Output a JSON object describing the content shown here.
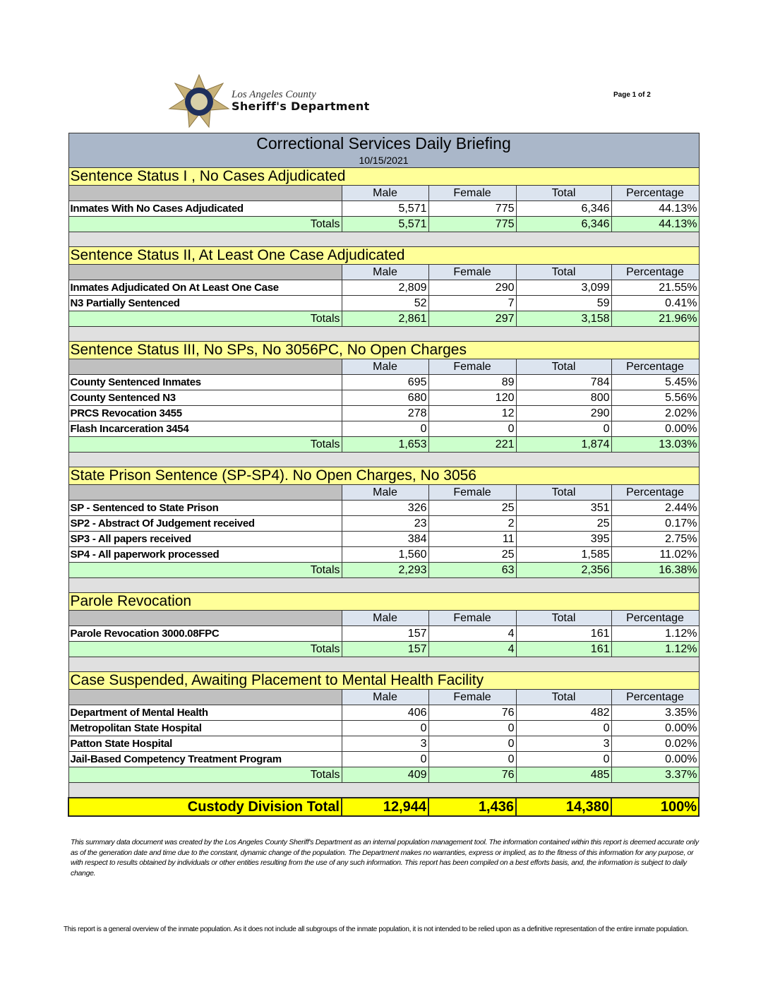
{
  "header": {
    "org_line1": "Los Angeles County",
    "org_line2": "Sheriff's Department",
    "page": "Page 1 of 2"
  },
  "report": {
    "title": "Correctional Services Daily Briefing",
    "date": "10/15/2021"
  },
  "columns": [
    "Male",
    "Female",
    "Total",
    "Percentage"
  ],
  "totals_label": "Totals",
  "sections": [
    {
      "title": "Sentence Status I , No Cases Adjudicated",
      "rows": [
        [
          "Inmates With No Cases Adjudicated",
          "5,571",
          "775",
          "6,346",
          "44.13%"
        ]
      ],
      "totals": [
        "5,571",
        "775",
        "6,346",
        "44.13%"
      ]
    },
    {
      "title": "Sentence Status II, At Least One Case Adjudicated",
      "rows": [
        [
          "Inmates Adjudicated On At Least One Case",
          "2,809",
          "290",
          "3,099",
          "21.55%"
        ],
        [
          "N3 Partially Sentenced",
          "52",
          "7",
          "59",
          "0.41%"
        ]
      ],
      "totals": [
        "2,861",
        "297",
        "3,158",
        "21.96%"
      ]
    },
    {
      "title": "Sentence Status III, No SPs, No 3056PC, No Open Charges",
      "rows": [
        [
          "County Sentenced Inmates",
          "695",
          "89",
          "784",
          "5.45%"
        ],
        [
          "County Sentenced N3",
          "680",
          "120",
          "800",
          "5.56%"
        ],
        [
          "PRCS Revocation 3455",
          "278",
          "12",
          "290",
          "2.02%"
        ],
        [
          "Flash Incarceration 3454",
          "0",
          "0",
          "0",
          "0.00%"
        ]
      ],
      "totals": [
        "1,653",
        "221",
        "1,874",
        "13.03%"
      ]
    },
    {
      "title": "State Prison Sentence (SP-SP4). No Open Charges, No 3056",
      "rows": [
        [
          "SP - Sentenced to State Prison",
          "326",
          "25",
          "351",
          "2.44%"
        ],
        [
          "SP2 - Abstract Of Judgement received",
          "23",
          "2",
          "25",
          "0.17%"
        ],
        [
          "SP3 - All papers received",
          "384",
          "11",
          "395",
          "2.75%"
        ],
        [
          "SP4 - All paperwork processed",
          "1,560",
          "25",
          "1,585",
          "11.02%"
        ]
      ],
      "totals": [
        "2,293",
        "63",
        "2,356",
        "16.38%"
      ]
    },
    {
      "title": "Parole Revocation",
      "rows": [
        [
          "Parole Revocation 3000.08FPC",
          "157",
          "4",
          "161",
          "1.12%"
        ]
      ],
      "totals": [
        "157",
        "4",
        "161",
        "1.12%"
      ]
    },
    {
      "title": "Case Suspended, Awaiting Placement to Mental Health Facility",
      "rows": [
        [
          "Department of Mental Health",
          "406",
          "76",
          "482",
          "3.35%"
        ],
        [
          "Metropolitan State Hospital",
          "0",
          "0",
          "0",
          "0.00%"
        ],
        [
          "Patton State Hospital",
          "3",
          "0",
          "3",
          "0.02%"
        ],
        [
          "Jail-Based Competency Treatment Program",
          "0",
          "0",
          "0",
          "0.00%"
        ]
      ],
      "totals": [
        "409",
        "76",
        "485",
        "3.37%"
      ]
    }
  ],
  "grand_total": {
    "label": "Custody Division Total",
    "values": [
      "12,944",
      "1,436",
      "14,380",
      "100%"
    ]
  },
  "disclaimer": "This summary data document was created by the Los Angeles County Sheriff's Department as an internal population management tool.  The information contained within this report is deemed accurate only as of the generation date and time due to the constant, dynamic change of the population.  The Department makes no warranties, express or implied, as to the fitness of this information for any purpose, or with respect to results obtained by individuals or other entities resulting from the use of any such information.  This report has been compiled on a best efforts basis, and, the information is subject to daily change.",
  "note": "This report is a general overview of the inmate population.  As it does not include all subgroups of the inmate population, it is not intended to be relied upon as a definitive representation of the entire inmate population."
}
